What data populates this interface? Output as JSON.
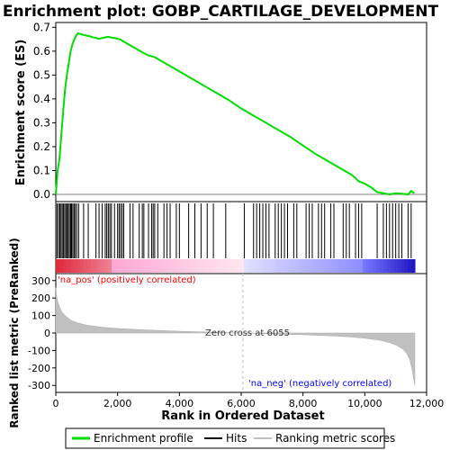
{
  "title": "Enrichment plot: GOBP_CARTILAGE_DEVELOPMENT",
  "colors": {
    "enrichment": "#00dd00",
    "hits": "#000000",
    "metric_fill": "#c0c0c0",
    "pos_label": "#ff0000",
    "neg_label": "#0000ff",
    "zero_line": "#c0c0c0"
  },
  "chart_data": [
    {
      "type": "line",
      "panel": "enrichment-score",
      "ylabel": "Enrichment score (ES)",
      "ylim": [
        -0.03,
        0.72
      ],
      "xlim": [
        0,
        12000
      ],
      "y_ticks": [
        0.0,
        0.1,
        0.2,
        0.3,
        0.4,
        0.5,
        0.6,
        0.7
      ],
      "y_tick_labels": [
        "0.0",
        "0.1",
        "0.2",
        "0.3",
        "0.4",
        "0.5",
        "0.6",
        "0.7"
      ],
      "grid": false,
      "series": [
        {
          "name": "Enrichment profile",
          "x": [
            0,
            60,
            120,
            180,
            240,
            300,
            360,
            420,
            480,
            540,
            600,
            660,
            720,
            800,
            900,
            1000,
            1100,
            1200,
            1300,
            1400,
            1500,
            1600,
            1700,
            1800,
            1900,
            2000,
            2100,
            2200,
            2400,
            2600,
            2800,
            3000,
            3200,
            3400,
            3600,
            3800,
            4000,
            4400,
            4800,
            5200,
            5600,
            6000,
            6400,
            6800,
            7200,
            7600,
            8000,
            8400,
            8800,
            9200,
            9600,
            9800,
            10000,
            10200,
            10400,
            10600,
            10800,
            11000,
            11200,
            11400,
            11500,
            11600
          ],
          "values": [
            0.0,
            0.1,
            0.15,
            0.25,
            0.35,
            0.44,
            0.5,
            0.55,
            0.6,
            0.63,
            0.65,
            0.665,
            0.675,
            0.672,
            0.668,
            0.665,
            0.662,
            0.658,
            0.655,
            0.652,
            0.655,
            0.658,
            0.66,
            0.657,
            0.655,
            0.652,
            0.648,
            0.64,
            0.625,
            0.61,
            0.595,
            0.582,
            0.575,
            0.56,
            0.545,
            0.53,
            0.515,
            0.485,
            0.455,
            0.425,
            0.395,
            0.36,
            0.33,
            0.3,
            0.27,
            0.24,
            0.205,
            0.17,
            0.14,
            0.11,
            0.08,
            0.055,
            0.045,
            0.03,
            0.01,
            0.005,
            0.0,
            0.005,
            0.003,
            0.0,
            0.015,
            0.005
          ]
        }
      ]
    },
    {
      "type": "scatter",
      "panel": "hits",
      "legend_label": "Hits",
      "xlim": [
        0,
        12000
      ],
      "x": [
        40,
        90,
        130,
        170,
        210,
        250,
        290,
        330,
        370,
        400,
        440,
        480,
        510,
        550,
        590,
        630,
        680,
        740,
        900,
        1050,
        1300,
        1400,
        1500,
        1600,
        1650,
        1700,
        1750,
        1800,
        1900,
        2000,
        2050,
        2100,
        2150,
        2200,
        2400,
        2500,
        2700,
        2800,
        2850,
        3000,
        3100,
        3150,
        3200,
        3300,
        3500,
        3600,
        3700,
        3900,
        4000,
        4300,
        4500,
        4700,
        4900,
        5100,
        5500,
        6100,
        6400,
        6500,
        6600,
        6700,
        6800,
        6900,
        7100,
        7200,
        7300,
        7400,
        7500,
        7700,
        7800,
        8100,
        8200,
        8300,
        8500,
        8600,
        8700,
        8900,
        9000,
        9300,
        9400,
        9500,
        9700,
        9800,
        9900,
        10400,
        10600,
        10700,
        10800,
        10900,
        11000,
        11100,
        11200,
        11400,
        11500
      ]
    },
    {
      "type": "area",
      "panel": "ranked-metric",
      "ylabel": "Ranked list metric (PreRanked)",
      "xlabel": "Rank in Ordered Dataset",
      "xlim": [
        0,
        12000
      ],
      "ylim": [
        -340,
        340
      ],
      "x_ticks": [
        0,
        2000,
        4000,
        6000,
        8000,
        10000,
        12000
      ],
      "x_tick_labels": [
        "0",
        "2,000",
        "4,000",
        "6,000",
        "8,000",
        "10,000",
        "12,000"
      ],
      "y_ticks": [
        -300,
        -200,
        -100,
        0,
        100,
        200,
        300
      ],
      "y_tick_labels": [
        "-300",
        "-200",
        "-100",
        "0",
        "100",
        "200",
        "300"
      ],
      "series": [
        {
          "name": "Ranking metric scores",
          "x": [
            0,
            20,
            60,
            120,
            200,
            300,
            400,
            500,
            700,
            1000,
            1500,
            2000,
            3000,
            4000,
            5000,
            6055,
            7000,
            8000,
            9000,
            9500,
            10000,
            10500,
            10800,
            11000,
            11200,
            11350,
            11450,
            11520,
            11580,
            11620
          ],
          "values": [
            260,
            220,
            180,
            150,
            120,
            100,
            85,
            72,
            58,
            45,
            33,
            26,
            17,
            10,
            5,
            0,
            -5,
            -10,
            -17,
            -22,
            -30,
            -42,
            -55,
            -68,
            -88,
            -115,
            -150,
            -200,
            -260,
            -300
          ]
        }
      ],
      "annotations": [
        "'na_pos' (positively correlated)",
        "Zero cross at 6055",
        "'na_neg' (negatively correlated)"
      ]
    }
  ],
  "legend": {
    "items": [
      {
        "label": "Enrichment profile",
        "color": "#00dd00"
      },
      {
        "label": "Hits",
        "color": "#000000"
      },
      {
        "label": "Ranking metric scores",
        "color": "#c0c0c0"
      }
    ]
  }
}
